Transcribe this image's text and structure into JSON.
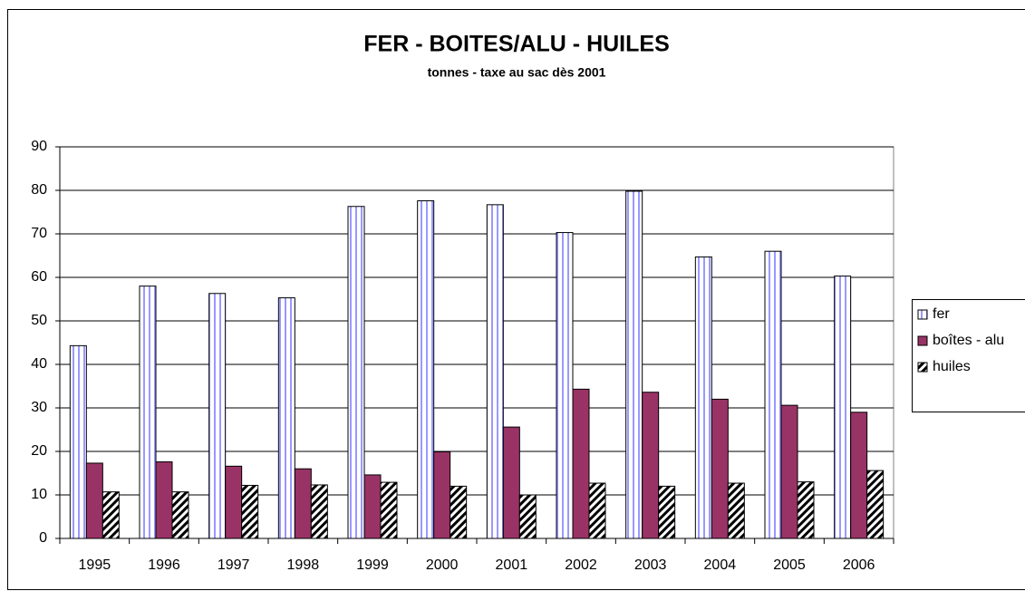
{
  "chart_data": {
    "type": "bar",
    "title": "FER - BOITES/ALU - HUILES",
    "subtitle": "tonnes - taxe au sac dès 2001",
    "categories": [
      "1995",
      "1996",
      "1997",
      "1998",
      "1999",
      "2000",
      "2001",
      "2002",
      "2003",
      "2004",
      "2005",
      "2006"
    ],
    "series": [
      {
        "name": "fer",
        "color": "#9999ff",
        "pattern": "vertical",
        "values": [
          44.3,
          58,
          56.3,
          55.3,
          76.3,
          77.6,
          76.7,
          70.3,
          79.8,
          64.7,
          66,
          60.3
        ]
      },
      {
        "name": "boîtes - alu",
        "color": "#993366",
        "values": [
          17.3,
          17.6,
          16.6,
          16,
          14.6,
          19.9,
          25.6,
          34.3,
          33.6,
          32,
          30.6,
          29
        ]
      },
      {
        "name": "huiles",
        "color": "#000000",
        "pattern": "diagonal",
        "values": [
          10.7,
          10.7,
          12.2,
          12.3,
          12.9,
          12,
          10,
          12.7,
          12,
          12.7,
          13,
          15.6
        ]
      }
    ],
    "ylim": [
      0,
      90
    ],
    "yticks": [
      0,
      10,
      20,
      30,
      40,
      50,
      60,
      70,
      80,
      90
    ],
    "grid": true,
    "legend": "right"
  }
}
